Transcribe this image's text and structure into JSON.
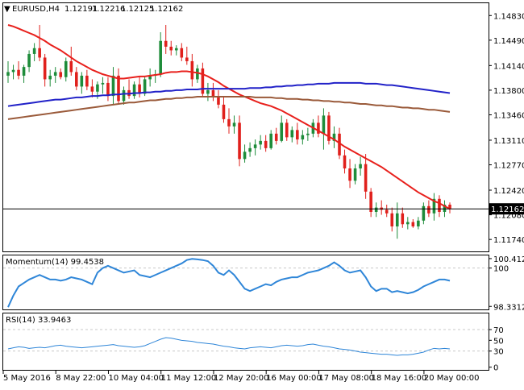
{
  "header": {
    "symbol": "EURUSD,H4",
    "ohlc": [
      "1.12191",
      "1.12216",
      "1.12125",
      "1.12162"
    ]
  },
  "colors": {
    "bull": "#1e8c3a",
    "bear": "#e0201c",
    "ma_fast": "#e8201c",
    "ma_mid": "#2222c8",
    "ma_slow": "#9a5a3a",
    "indicator": "#2f86d8",
    "price_tag_bg": "#000000",
    "grid": "#c8c8c8"
  },
  "chart_data": [
    {
      "type": "candlestick",
      "title": "EURUSD,H4",
      "ylim": [
        1.11575,
        1.15
      ],
      "y_ticks": [
        "1.14830",
        "1.14490",
        "1.14140",
        "1.13800",
        "1.13460",
        "1.13110",
        "1.12770",
        "1.12420",
        "1.12080",
        "1.11740"
      ],
      "y_tick_values": [
        1.1483,
        1.1449,
        1.1414,
        1.138,
        1.1346,
        1.1311,
        1.1277,
        1.1242,
        1.1208,
        1.1174
      ],
      "current_price": 1.12162,
      "current_price_label": "1.12162",
      "x_ticks": [
        "5 May 2016",
        "8 May 22:00",
        "10 May 04:00",
        "11 May 12:00",
        "12 May 20:00",
        "16 May 00:00",
        "17 May 08:00",
        "18 May 16:00",
        "20 May 00:00"
      ],
      "x_tick_index": [
        0,
        10,
        20,
        30,
        40,
        50,
        60,
        70,
        80
      ],
      "candles": [
        [
          1.14,
          1.142,
          1.139,
          1.1405
        ],
        [
          1.1405,
          1.1415,
          1.1395,
          1.1408
        ],
        [
          1.1408,
          1.142,
          1.1395,
          1.14
        ],
        [
          1.14,
          1.1415,
          1.139,
          1.1412
        ],
        [
          1.1412,
          1.1435,
          1.1405,
          1.143
        ],
        [
          1.143,
          1.1445,
          1.142,
          1.1438
        ],
        [
          1.1438,
          1.147,
          1.142,
          1.1425
        ],
        [
          1.1425,
          1.143,
          1.1385,
          1.1395
        ],
        [
          1.1395,
          1.1408,
          1.1385,
          1.14
        ],
        [
          1.14,
          1.1412,
          1.139,
          1.1405
        ],
        [
          1.1405,
          1.141,
          1.1395,
          1.1398
        ],
        [
          1.1398,
          1.1425,
          1.1392,
          1.142
        ],
        [
          1.142,
          1.144,
          1.14,
          1.1405
        ],
        [
          1.1405,
          1.1412,
          1.138,
          1.1385
        ],
        [
          1.1385,
          1.1405,
          1.1375,
          1.14
        ],
        [
          1.14,
          1.1408,
          1.138,
          1.1385
        ],
        [
          1.1385,
          1.1395,
          1.137,
          1.1378
        ],
        [
          1.1378,
          1.1392,
          1.1368,
          1.1388
        ],
        [
          1.1388,
          1.1398,
          1.1375,
          1.139
        ],
        [
          1.139,
          1.1398,
          1.1365,
          1.1372
        ],
        [
          1.1372,
          1.1412,
          1.136,
          1.14
        ],
        [
          1.14,
          1.141,
          1.1362,
          1.1365
        ],
        [
          1.1365,
          1.1385,
          1.136,
          1.138
        ],
        [
          1.138,
          1.1395,
          1.1368,
          1.1372
        ],
        [
          1.1372,
          1.1392,
          1.1368,
          1.1388
        ],
        [
          1.1388,
          1.1398,
          1.137,
          1.1375
        ],
        [
          1.1375,
          1.1398,
          1.1372,
          1.1395
        ],
        [
          1.1395,
          1.141,
          1.1385,
          1.14
        ],
        [
          1.14,
          1.1408,
          1.139,
          1.1402
        ],
        [
          1.1402,
          1.146,
          1.1398,
          1.1448
        ],
        [
          1.1448,
          1.147,
          1.143,
          1.144
        ],
        [
          1.144,
          1.1448,
          1.1428,
          1.1435
        ],
        [
          1.1435,
          1.1442,
          1.1428,
          1.1438
        ],
        [
          1.1438,
          1.1445,
          1.142,
          1.1425
        ],
        [
          1.1425,
          1.144,
          1.1415,
          1.142
        ],
        [
          1.142,
          1.143,
          1.1385,
          1.1395
        ],
        [
          1.1395,
          1.1415,
          1.139,
          1.141
        ],
        [
          1.141,
          1.1418,
          1.137,
          1.1375
        ],
        [
          1.1375,
          1.139,
          1.1365,
          1.138
        ],
        [
          1.138,
          1.139,
          1.1365,
          1.137
        ],
        [
          1.137,
          1.138,
          1.1355,
          1.136
        ],
        [
          1.136,
          1.137,
          1.1335,
          1.134
        ],
        [
          1.134,
          1.1355,
          1.132,
          1.133
        ],
        [
          1.133,
          1.1345,
          1.132,
          1.1335
        ],
        [
          1.1335,
          1.1345,
          1.1275,
          1.1285
        ],
        [
          1.1285,
          1.1305,
          1.128,
          1.1295
        ],
        [
          1.1295,
          1.1308,
          1.1288,
          1.13
        ],
        [
          1.13,
          1.1312,
          1.129,
          1.1305
        ],
        [
          1.1305,
          1.1318,
          1.1298,
          1.131
        ],
        [
          1.131,
          1.1318,
          1.1295,
          1.13
        ],
        [
          1.13,
          1.1325,
          1.1298,
          1.132
        ],
        [
          1.132,
          1.1328,
          1.1305,
          1.131
        ],
        [
          1.131,
          1.1345,
          1.1308,
          1.1335
        ],
        [
          1.1335,
          1.134,
          1.131,
          1.1315
        ],
        [
          1.1315,
          1.133,
          1.1308,
          1.1325
        ],
        [
          1.1325,
          1.1335,
          1.1305,
          1.1312
        ],
        [
          1.1312,
          1.1325,
          1.1305,
          1.1318
        ],
        [
          1.1318,
          1.1328,
          1.131,
          1.132
        ],
        [
          1.132,
          1.134,
          1.1315,
          1.1335
        ],
        [
          1.1335,
          1.1345,
          1.1315,
          1.132
        ],
        [
          1.132,
          1.1355,
          1.1298,
          1.1345
        ],
        [
          1.1345,
          1.135,
          1.1305,
          1.131
        ],
        [
          1.131,
          1.133,
          1.13,
          1.132
        ],
        [
          1.132,
          1.1328,
          1.1285,
          1.129
        ],
        [
          1.129,
          1.1298,
          1.1265,
          1.1272
        ],
        [
          1.1272,
          1.1285,
          1.1245,
          1.1255
        ],
        [
          1.1255,
          1.1278,
          1.125,
          1.1272
        ],
        [
          1.1272,
          1.1288,
          1.1262,
          1.1278
        ],
        [
          1.1278,
          1.1292,
          1.123,
          1.124
        ],
        [
          1.124,
          1.1245,
          1.1205,
          1.1212
        ],
        [
          1.1212,
          1.1225,
          1.1205,
          1.1218
        ],
        [
          1.1218,
          1.1228,
          1.1208,
          1.1215
        ],
        [
          1.1215,
          1.1222,
          1.1205,
          1.121
        ],
        [
          1.121,
          1.1218,
          1.1185,
          1.1192
        ],
        [
          1.1192,
          1.1225,
          1.1175,
          1.121
        ],
        [
          1.121,
          1.1218,
          1.119,
          1.1195
        ],
        [
          1.1195,
          1.1205,
          1.1188,
          1.1198
        ],
        [
          1.1198,
          1.1202,
          1.119,
          1.1192
        ],
        [
          1.1192,
          1.1205,
          1.1188,
          1.12
        ],
        [
          1.12,
          1.1225,
          1.1195,
          1.122
        ],
        [
          1.122,
          1.1228,
          1.1205,
          1.121
        ],
        [
          1.121,
          1.1238,
          1.12,
          1.123
        ],
        [
          1.123,
          1.1235,
          1.1205,
          1.1212
        ],
        [
          1.1212,
          1.1228,
          1.1205,
          1.1222
        ],
        [
          1.1222,
          1.1225,
          1.121,
          1.1216
        ]
      ],
      "series": [
        {
          "kind": "ma_fast",
          "values": [
            1.147,
            1.1468,
            1.1465,
            1.1462,
            1.1459,
            1.1456,
            1.1452,
            1.1448,
            1.1443,
            1.1439,
            1.1435,
            1.143,
            1.1425,
            1.142,
            1.1416,
            1.1412,
            1.1408,
            1.1405,
            1.1402,
            1.14,
            1.1398,
            1.1396,
            1.1396,
            1.1397,
            1.1398,
            1.1399,
            1.1399,
            1.14,
            1.1401,
            1.1402,
            1.1404,
            1.1405,
            1.1405,
            1.1406,
            1.1406,
            1.1405,
            1.1404,
            1.1402,
            1.1399,
            1.1395,
            1.1391,
            1.1386,
            1.1382,
            1.1378,
            1.1374,
            1.1371,
            1.1368,
            1.1365,
            1.1362,
            1.136,
            1.1358,
            1.1355,
            1.1352,
            1.1348,
            1.1344,
            1.134,
            1.1336,
            1.1332,
            1.1328,
            1.1324,
            1.132,
            1.1316,
            1.1312,
            1.1307,
            1.1302,
            1.1298,
            1.1294,
            1.129,
            1.1286,
            1.1282,
            1.1278,
            1.1274,
            1.1269,
            1.1264,
            1.1259,
            1.1254,
            1.1249,
            1.1244,
            1.1239,
            1.1235,
            1.1231,
            1.1227,
            1.1224,
            1.122,
            1.1216
          ]
        },
        {
          "kind": "ma_mid",
          "values": [
            1.1358,
            1.1359,
            1.136,
            1.1361,
            1.1362,
            1.1363,
            1.1364,
            1.1365,
            1.1366,
            1.1367,
            1.1367,
            1.1368,
            1.1369,
            1.137,
            1.137,
            1.1371,
            1.1372,
            1.1372,
            1.1373,
            1.1373,
            1.1374,
            1.1374,
            1.1375,
            1.1375,
            1.1376,
            1.1376,
            1.1377,
            1.1377,
            1.1378,
            1.1378,
            1.1379,
            1.1379,
            1.138,
            1.138,
            1.1381,
            1.1381,
            1.1381,
            1.1382,
            1.1382,
            1.1382,
            1.1382,
            1.1382,
            1.1382,
            1.1382,
            1.1382,
            1.1382,
            1.1383,
            1.1383,
            1.1383,
            1.1384,
            1.1384,
            1.1385,
            1.1385,
            1.1386,
            1.1386,
            1.1387,
            1.1387,
            1.1388,
            1.1388,
            1.1389,
            1.1389,
            1.1389,
            1.139,
            1.139,
            1.139,
            1.139,
            1.139,
            1.139,
            1.1389,
            1.1389,
            1.1389,
            1.1388,
            1.1387,
            1.1387,
            1.1386,
            1.1385,
            1.1384,
            1.1383,
            1.1382,
            1.1381,
            1.138,
            1.1379,
            1.1378,
            1.1377,
            1.1376
          ]
        },
        {
          "kind": "ma_slow",
          "values": [
            1.134,
            1.1341,
            1.1342,
            1.1343,
            1.1344,
            1.1345,
            1.1346,
            1.1347,
            1.1348,
            1.1349,
            1.135,
            1.1351,
            1.1352,
            1.1353,
            1.1354,
            1.1355,
            1.1356,
            1.1357,
            1.1358,
            1.1359,
            1.136,
            1.1361,
            1.1362,
            1.1363,
            1.1363,
            1.1364,
            1.1365,
            1.1366,
            1.1366,
            1.1367,
            1.1368,
            1.1368,
            1.1369,
            1.1369,
            1.137,
            1.137,
            1.1371,
            1.1371,
            1.1371,
            1.1371,
            1.1371,
            1.1371,
            1.1371,
            1.1371,
            1.1371,
            1.1371,
            1.1371,
            1.137,
            1.137,
            1.137,
            1.137,
            1.1369,
            1.1369,
            1.1368,
            1.1368,
            1.1368,
            1.1367,
            1.1367,
            1.1366,
            1.1366,
            1.1365,
            1.1365,
            1.1364,
            1.1364,
            1.1363,
            1.1363,
            1.1362,
            1.1361,
            1.1361,
            1.136,
            1.1359,
            1.1359,
            1.1358,
            1.1358,
            1.1357,
            1.1356,
            1.1356,
            1.1355,
            1.1355,
            1.1354,
            1.1353,
            1.1353,
            1.1352,
            1.1351,
            1.135
          ]
        }
      ]
    },
    {
      "type": "line",
      "title": "Momentum(14) 99.4538",
      "ylim": [
        98.2,
        100.55
      ],
      "y_ticks": [
        "100.4124",
        "100",
        "98.3312"
      ],
      "y_tick_values": [
        100.4124,
        100.0,
        98.3312
      ],
      "series": [
        {
          "values": [
            98.3,
            98.8,
            99.2,
            99.35,
            99.5,
            99.6,
            99.7,
            99.6,
            99.5,
            99.5,
            99.45,
            99.5,
            99.6,
            99.55,
            99.5,
            99.4,
            99.3,
            99.8,
            100.0,
            100.1,
            100.0,
            99.9,
            99.8,
            99.85,
            99.9,
            99.7,
            99.65,
            99.6,
            99.7,
            99.8,
            99.9,
            100.0,
            100.1,
            100.2,
            100.35,
            100.4,
            100.38,
            100.35,
            100.3,
            100.1,
            99.8,
            99.7,
            99.9,
            99.7,
            99.4,
            99.1,
            99.0,
            99.1,
            99.2,
            99.3,
            99.25,
            99.4,
            99.5,
            99.55,
            99.6,
            99.6,
            99.7,
            99.8,
            99.85,
            99.9,
            100.0,
            100.1,
            100.25,
            100.1,
            99.9,
            99.8,
            99.85,
            99.9,
            99.6,
            99.2,
            99.0,
            99.1,
            99.1,
            98.95,
            99.0,
            98.95,
            98.9,
            98.95,
            99.05,
            99.2,
            99.3,
            99.4,
            99.5,
            99.5,
            99.45
          ]
        }
      ]
    },
    {
      "type": "line",
      "title": "RSI(14) 33.9463",
      "ylim": [
        0,
        100
      ],
      "y_ticks": [
        "70",
        "50",
        "30",
        "0"
      ],
      "y_tick_values": [
        70,
        50,
        30,
        0
      ],
      "series": [
        {
          "values": [
            34,
            36,
            38,
            37,
            35,
            36,
            37,
            36,
            38,
            40,
            41,
            39,
            38,
            37,
            36,
            37,
            38,
            39,
            40,
            41,
            42,
            40,
            39,
            38,
            37,
            38,
            40,
            44,
            48,
            52,
            55,
            54,
            52,
            50,
            49,
            48,
            46,
            45,
            44,
            43,
            41,
            39,
            38,
            36,
            35,
            34,
            36,
            37,
            38,
            37,
            36,
            38,
            40,
            41,
            40,
            39,
            40,
            42,
            43,
            41,
            39,
            38,
            36,
            34,
            33,
            32,
            30,
            28,
            27,
            26,
            25,
            24,
            24,
            23,
            22,
            23,
            23,
            24,
            26,
            28,
            32,
            35,
            34,
            35,
            34
          ]
        }
      ]
    }
  ]
}
